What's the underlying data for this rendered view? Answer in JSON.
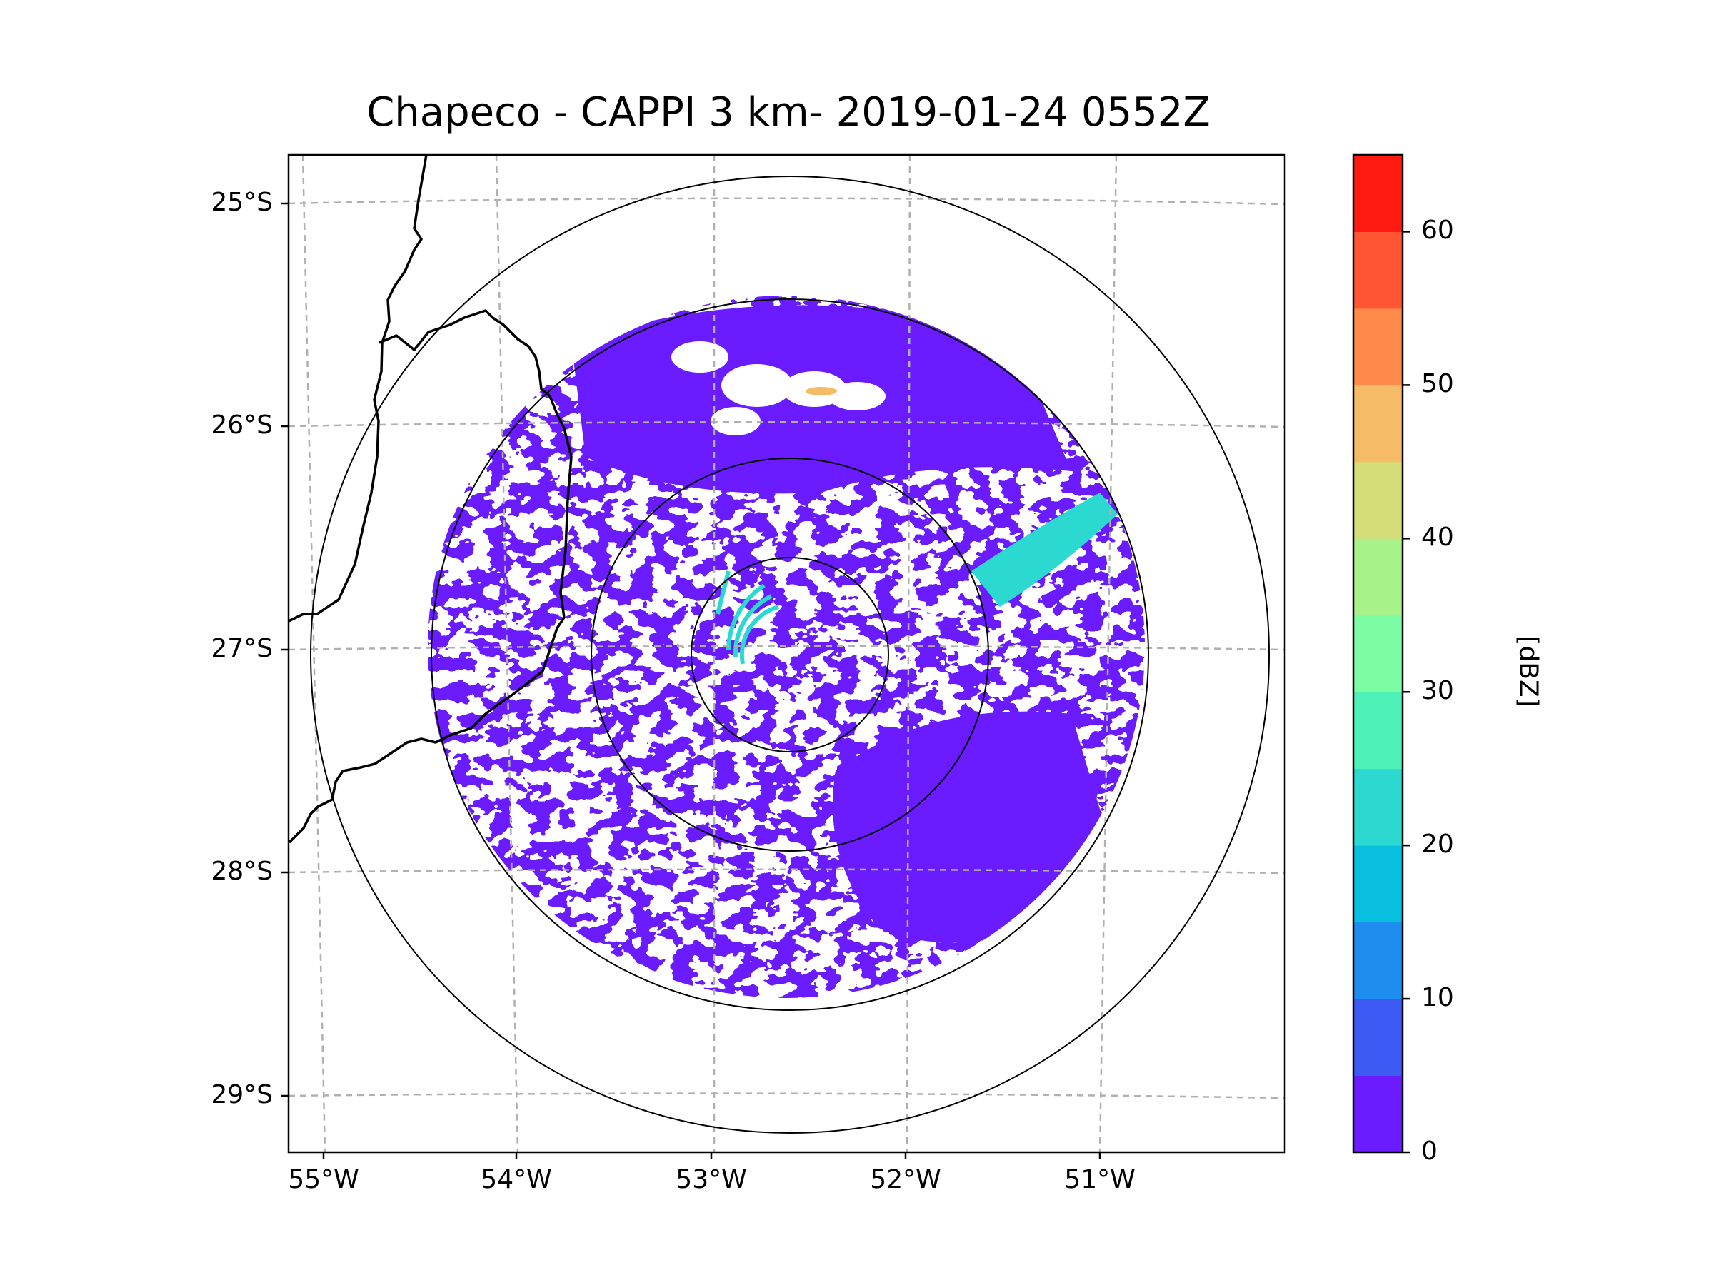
{
  "title": "Chapeco - CAPPI 3 km- 2019-01-24 0552Z",
  "map": {
    "radar_site": "Chapeco",
    "product": "CAPPI 3 km",
    "timestamp": "2019-01-24 0552Z",
    "lat_labels": [
      "25°S",
      "26°S",
      "27°S",
      "28°S",
      "29°S"
    ],
    "lon_labels": [
      "55°W",
      "54°W",
      "53°W",
      "52°W",
      "51°W"
    ],
    "gridline_style": "dashed gray",
    "border_color": "#000000"
  },
  "colorbar": {
    "label": "[dBZ]",
    "tick_labels": [
      "0",
      "10",
      "20",
      "30",
      "40",
      "50",
      "60"
    ],
    "min": 0,
    "max": 65,
    "step": 5,
    "colors": [
      "#6a1bff",
      "#3d5af5",
      "#1f8df0",
      "#08bfe0",
      "#2bd9d0",
      "#4ef2b8",
      "#7cfca3",
      "#a8f28a",
      "#d4dd78",
      "#f5bb66",
      "#ff8a4a",
      "#ff5533",
      "#ff1a12"
    ]
  },
  "echo_colors": {
    "weak": "#6a1bff",
    "moderate": "#2bd9d0",
    "strong": "#f5bb66"
  }
}
